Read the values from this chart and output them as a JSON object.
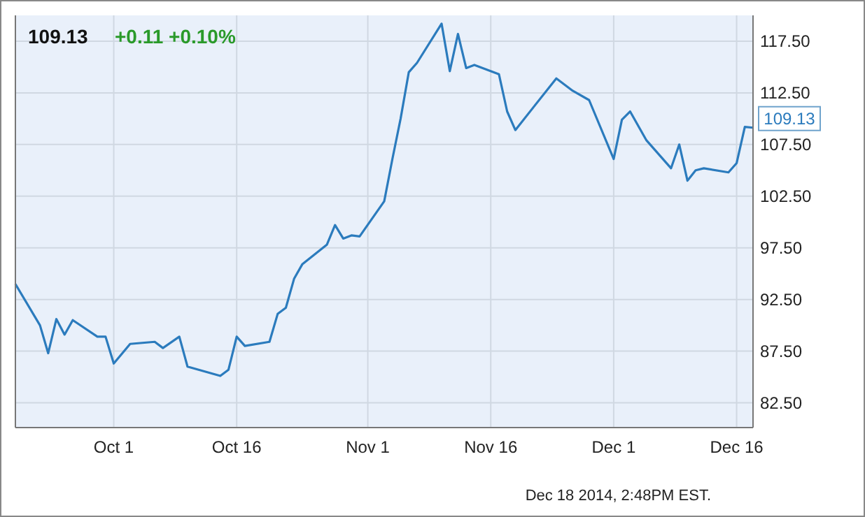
{
  "chart_data": {
    "type": "line",
    "title": "109.13",
    "subtitle": "+0.11 +0.10%",
    "x": [
      "2014-09-19",
      "2014-09-22",
      "2014-09-23",
      "2014-09-24",
      "2014-09-25",
      "2014-09-26",
      "2014-09-29",
      "2014-09-30",
      "2014-10-01",
      "2014-10-03",
      "2014-10-06",
      "2014-10-07",
      "2014-10-09",
      "2014-10-10",
      "2014-10-14",
      "2014-10-15",
      "2014-10-16",
      "2014-10-17",
      "2014-10-20",
      "2014-10-21",
      "2014-10-22",
      "2014-10-23",
      "2014-10-24",
      "2014-10-27",
      "2014-10-28",
      "2014-10-29",
      "2014-10-30",
      "2014-10-31",
      "2014-11-03",
      "2014-11-04",
      "2014-11-05",
      "2014-11-06",
      "2014-11-07",
      "2014-11-10",
      "2014-11-11",
      "2014-11-12",
      "2014-11-13",
      "2014-11-14",
      "2014-11-17",
      "2014-11-18",
      "2014-11-19",
      "2014-11-24",
      "2014-11-26",
      "2014-11-28",
      "2014-12-01",
      "2014-12-02",
      "2014-12-03",
      "2014-12-05",
      "2014-12-08",
      "2014-12-09",
      "2014-12-10",
      "2014-12-11",
      "2014-12-12",
      "2014-12-15",
      "2014-12-16",
      "2014-12-17",
      "2014-12-18"
    ],
    "series": [
      {
        "color": "#2b7bbd",
        "values": [
          94.0,
          90.0,
          87.3,
          90.6,
          89.1,
          90.5,
          88.9,
          88.9,
          86.3,
          88.2,
          88.4,
          87.8,
          88.9,
          86.0,
          85.1,
          85.7,
          88.9,
          88.0,
          88.4,
          91.1,
          91.7,
          94.5,
          95.9,
          97.8,
          99.7,
          98.4,
          98.7,
          98.6,
          102.0,
          106.1,
          110.0,
          114.5,
          115.4,
          119.2,
          114.6,
          118.2,
          114.9,
          115.2,
          114.3,
          110.7,
          108.9,
          113.9,
          112.7,
          111.8,
          106.1,
          109.9,
          110.7,
          107.9,
          105.2,
          107.5,
          104.0,
          105.0,
          105.2,
          104.8,
          105.7,
          109.2,
          109.13
        ]
      }
    ],
    "xlim": [
      "2014-09-19",
      "2014-12-18"
    ],
    "xticks": [
      {
        "value": "2014-10-01",
        "label": "Oct 1"
      },
      {
        "value": "2014-10-16",
        "label": "Oct 16"
      },
      {
        "value": "2014-11-01",
        "label": "Nov 1"
      },
      {
        "value": "2014-11-16",
        "label": "Nov 16"
      },
      {
        "value": "2014-12-01",
        "label": "Dec 1"
      },
      {
        "value": "2014-12-16",
        "label": "Dec 16"
      }
    ],
    "ylim": [
      80.1,
      120
    ],
    "yticks": [
      {
        "value": 82.5,
        "label": "82.50"
      },
      {
        "value": 87.5,
        "label": "87.50"
      },
      {
        "value": 92.5,
        "label": "92.50"
      },
      {
        "value": 97.5,
        "label": "97.50"
      },
      {
        "value": 102.5,
        "label": "102.50"
      },
      {
        "value": 107.5,
        "label": "107.50"
      },
      {
        "value": 112.5,
        "label": "112.50"
      },
      {
        "value": 117.5,
        "label": "117.50"
      }
    ],
    "grid": true,
    "marker": "none",
    "line_style": "solid",
    "annotations": [
      {
        "text": "109.13",
        "x": "2014-12-18",
        "y": 109.13
      },
      "Dec 18 2014, 2:48PM EST."
    ]
  }
}
